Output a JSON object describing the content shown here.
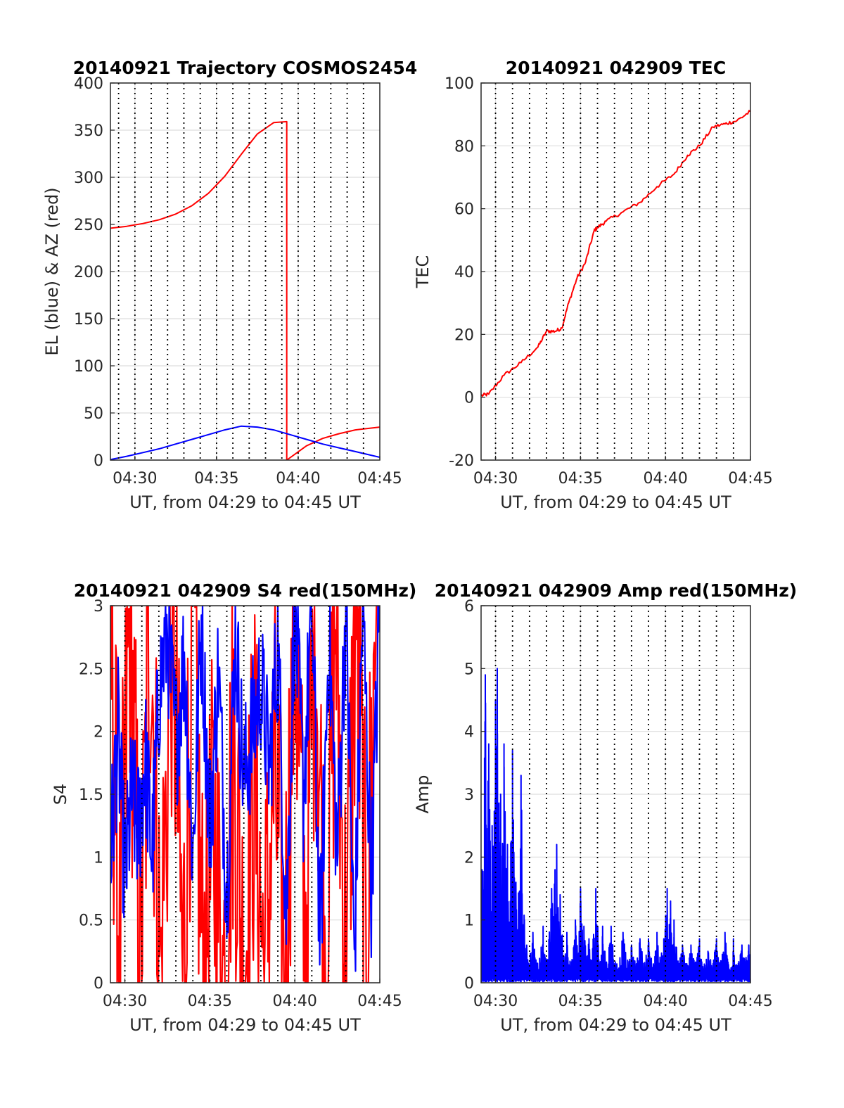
{
  "chart_data": [
    {
      "id": "trajectory",
      "type": "line",
      "title": "20140921 Trajectory COSMOS2454",
      "xlabel": "UT, from 04:29 to 04:45 UT",
      "ylabel": "EL (blue) & AZ (red)",
      "xlim": [
        4.5,
        21.0
      ],
      "ylim": [
        0,
        400
      ],
      "xticks": [
        {
          "value": 6,
          "label": "04:30"
        },
        {
          "value": 11,
          "label": "04:35"
        },
        {
          "value": 16,
          "label": "04:40"
        },
        {
          "value": 21,
          "label": "04:45"
        }
      ],
      "yticks": [
        0,
        50,
        100,
        150,
        200,
        250,
        300,
        350,
        400
      ],
      "grid": true,
      "series": [
        {
          "color": "#ff0000",
          "x": [
            4.5,
            5.5,
            6.5,
            7.5,
            8.5,
            9.5,
            10.5,
            11.5,
            12.5,
            13.5,
            14.5,
            15.3,
            15.3,
            16.5,
            17.5,
            18.5,
            19.5,
            21.0
          ],
          "y": [
            246,
            248,
            251,
            255,
            261,
            270,
            283,
            301,
            324,
            346,
            358,
            359,
            0,
            15,
            23,
            28,
            32,
            35
          ]
        },
        {
          "color": "#0000ff",
          "x": [
            4.5,
            5.5,
            6.5,
            7.5,
            8.5,
            9.5,
            10.5,
            11.5,
            12.5,
            13.5,
            14.5,
            15.5,
            16.5,
            17.5,
            18.5,
            19.5,
            21.0
          ],
          "y": [
            0.5,
            4,
            8,
            12,
            17,
            22,
            27,
            32,
            36,
            35,
            32,
            27,
            22,
            17,
            13,
            9,
            3
          ]
        }
      ]
    },
    {
      "id": "tec",
      "type": "line",
      "title": "20140921 042909 TEC",
      "xlabel": "UT, from 04:29 to 04:45 UT",
      "ylabel": "TEC",
      "xlim": [
        29.15,
        45.0
      ],
      "ylim": [
        -20,
        100
      ],
      "xticks": [
        {
          "value": 30,
          "label": "04:30"
        },
        {
          "value": 35,
          "label": "04:35"
        },
        {
          "value": 40,
          "label": "04:40"
        },
        {
          "value": 45,
          "label": "04:45"
        }
      ],
      "yticks": [
        -20,
        0,
        20,
        40,
        60,
        80,
        100
      ],
      "grid": true,
      "series": [
        {
          "color": "#ff0000",
          "x": [
            29.15,
            29.6,
            30.5,
            31.5,
            32.5,
            33.0,
            33.5,
            33.9,
            34.3,
            34.8,
            35.3,
            35.8,
            36.0,
            36.5,
            37.5,
            38.5,
            39.5,
            40.5,
            41.3,
            42.0,
            42.8,
            43.5,
            44.2,
            45.0
          ],
          "y": [
            0.5,
            1,
            7,
            11,
            16,
            21,
            21,
            22,
            30,
            38,
            43,
            53,
            54,
            56,
            59,
            62,
            67,
            71,
            77,
            80,
            86,
            87,
            88,
            91
          ]
        }
      ]
    },
    {
      "id": "s4",
      "type": "line",
      "title": "20140921 042909 S4 red(150MHz)",
      "xlabel": "UT, from 04:29 to 04:45 UT",
      "ylabel": "S4",
      "xlim": [
        29.15,
        45.0
      ],
      "ylim": [
        0,
        3
      ],
      "xticks": [
        {
          "value": 30,
          "label": "04:30"
        },
        {
          "value": 35,
          "label": "04:35"
        },
        {
          "value": 40,
          "label": "04:40"
        },
        {
          "value": 45,
          "label": "04:45"
        }
      ],
      "yticks": [
        0,
        0.5,
        1,
        1.5,
        2,
        2.5,
        3
      ],
      "grid": true,
      "series": [
        {
          "color": "#ff0000",
          "x": [
            29.15,
            29.7,
            30.3,
            30.9,
            31.5,
            32.1,
            32.8,
            33.4,
            34.0,
            34.6,
            35.2,
            35.8,
            36.4,
            37.0,
            37.6,
            38.2,
            38.8,
            39.4,
            40.0,
            40.6,
            41.2,
            41.8,
            42.4,
            43.0,
            43.6,
            44.2,
            44.8
          ],
          "y": [
            3,
            0,
            3,
            0,
            3,
            0,
            3,
            0,
            2.9,
            0,
            1.2,
            0,
            2.0,
            0,
            1.7,
            0,
            1.7,
            0,
            3,
            0.2,
            3,
            0,
            3,
            0.1,
            3,
            0.2,
            3
          ]
        },
        {
          "color": "#0000ff",
          "x": [
            29.15,
            29.6,
            30.0,
            30.4,
            30.8,
            31.2,
            31.6,
            32.0,
            32.5,
            33.0,
            33.5,
            34.0,
            34.5,
            35.0,
            35.5,
            36.0,
            36.5,
            37.0,
            37.5,
            38.0,
            38.5,
            39.0,
            39.5,
            40.0,
            40.5,
            41.0,
            41.5,
            42.0,
            42.5,
            43.0,
            43.5,
            44.0,
            44.5,
            45.0
          ],
          "y": [
            1.0,
            2.0,
            0.8,
            1.5,
            1.2,
            1.8,
            1.0,
            2.3,
            2.8,
            1.9,
            2.6,
            1.0,
            2.9,
            1.2,
            2.5,
            0.7,
            2.8,
            1.6,
            2.0,
            2.4,
            1.7,
            2.7,
            0.5,
            3.0,
            1.5,
            3.0,
            0.3,
            2.8,
            1.0,
            3.0,
            0.2,
            3.0,
            0.8,
            3.0
          ]
        }
      ]
    },
    {
      "id": "amp",
      "type": "line",
      "title": "20140921 042909 Amp red(150MHz)",
      "xlabel": "UT, from 04:29 to 04:45 UT",
      "ylabel": "Amp",
      "xlim": [
        29.15,
        45.0
      ],
      "ylim": [
        0,
        6
      ],
      "xticks": [
        {
          "value": 30,
          "label": "04:30"
        },
        {
          "value": 35,
          "label": "04:35"
        },
        {
          "value": 40,
          "label": "04:40"
        },
        {
          "value": 45,
          "label": "04:45"
        }
      ],
      "yticks": [
        0,
        1,
        2,
        3,
        4,
        5,
        6
      ],
      "grid": true,
      "series": [
        {
          "color": "#0000ff",
          "peaks": [
            [
              29.2,
              1.8
            ],
            [
              29.4,
              4.9
            ],
            [
              29.6,
              3.8
            ],
            [
              29.8,
              2.5
            ],
            [
              30.0,
              4.5
            ],
            [
              30.1,
              5.0
            ],
            [
              30.3,
              3.0
            ],
            [
              30.5,
              3.8
            ],
            [
              30.7,
              2.2
            ],
            [
              30.9,
              2.0
            ],
            [
              31.0,
              3.7
            ],
            [
              31.2,
              1.6
            ],
            [
              31.5,
              3.3
            ],
            [
              31.7,
              1.0
            ],
            [
              32.2,
              0.8
            ],
            [
              32.8,
              0.9
            ],
            [
              33.3,
              1.5
            ],
            [
              33.5,
              1.8
            ],
            [
              33.6,
              2.2
            ],
            [
              33.8,
              1.4
            ],
            [
              34.2,
              0.8
            ],
            [
              34.7,
              1.0
            ],
            [
              35.0,
              1.5
            ],
            [
              35.2,
              0.9
            ],
            [
              35.5,
              0.7
            ],
            [
              35.9,
              1.5
            ],
            [
              36.3,
              0.9
            ],
            [
              36.8,
              0.9
            ],
            [
              37.5,
              0.8
            ],
            [
              38.0,
              0.6
            ],
            [
              38.5,
              0.7
            ],
            [
              39.0,
              0.7
            ],
            [
              39.5,
              0.8
            ],
            [
              39.9,
              0.7
            ],
            [
              40.1,
              1.5
            ],
            [
              40.3,
              1.3
            ],
            [
              40.5,
              1.0
            ],
            [
              41.0,
              0.6
            ],
            [
              41.5,
              0.6
            ],
            [
              42.0,
              0.7
            ],
            [
              42.5,
              0.5
            ],
            [
              43.0,
              0.7
            ],
            [
              43.5,
              0.8
            ],
            [
              44.0,
              0.7
            ],
            [
              44.5,
              0.6
            ],
            [
              44.9,
              0.6
            ]
          ],
          "baseline": 0.6
        }
      ]
    }
  ]
}
